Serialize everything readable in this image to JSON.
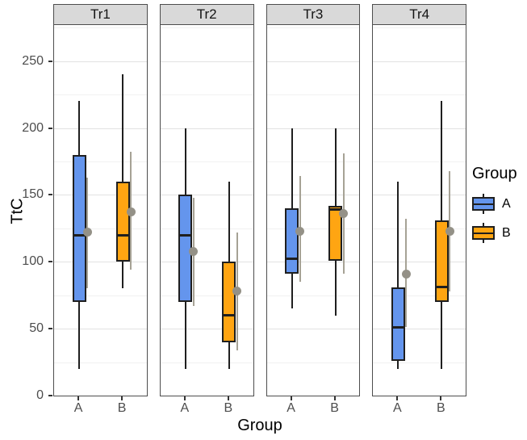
{
  "figure": {
    "y_axis_title": "TtC",
    "x_axis_title": "Group",
    "y_tick_labels": [
      "0",
      "50",
      "100",
      "150",
      "200",
      "250"
    ],
    "x_tick_labels": [
      "A",
      "B"
    ],
    "facet_labels": [
      "Tr1",
      "Tr2",
      "Tr3",
      "Tr4"
    ]
  },
  "legend": {
    "title": "Group",
    "entries": [
      {
        "label": "A",
        "color": "#6495ED"
      },
      {
        "label": "B",
        "color": "#FFA512"
      }
    ]
  },
  "style": {
    "box_outline": "#1F1F1F",
    "mean_point_color": "#949187",
    "mean_bar_color": "#A6A295",
    "strip_fill": "#D9D9D9",
    "panel_border": "#4D4D4D",
    "major_grid": "#E2E2E2",
    "minor_grid": "#F1F1F1",
    "tick_text": "#4D4D4D"
  },
  "chart_data": {
    "type": "boxplot",
    "title": "",
    "facets": [
      "Tr1",
      "Tr2",
      "Tr3",
      "Tr4"
    ],
    "x_categories": [
      "A",
      "B"
    ],
    "xlabel": "Group",
    "ylabel": "TtC",
    "ylim": [
      0,
      277
    ],
    "yticks": [
      0,
      50,
      100,
      150,
      200,
      250
    ],
    "minor_grid_values": [
      25,
      75,
      125,
      175,
      225,
      275
    ],
    "grid": true,
    "legend_position": "right",
    "group_colors": {
      "A": "#6495ED",
      "B": "#FFA512"
    },
    "boxes": [
      {
        "facet": "Tr1",
        "group": "A",
        "whisker_low": 20,
        "q1": 70,
        "median": 120,
        "q3": 180,
        "whisker_high": 220,
        "mean": 122,
        "mean_bar_low": 80,
        "mean_bar_high": 163
      },
      {
        "facet": "Tr1",
        "group": "B",
        "whisker_low": 80,
        "q1": 100,
        "median": 120,
        "q3": 160,
        "whisker_high": 240,
        "mean": 137,
        "mean_bar_low": 94,
        "mean_bar_high": 182
      },
      {
        "facet": "Tr2",
        "group": "A",
        "whisker_low": 20,
        "q1": 70,
        "median": 120,
        "q3": 150,
        "whisker_high": 200,
        "mean": 108,
        "mean_bar_low": 67,
        "mean_bar_high": 148
      },
      {
        "facet": "Tr2",
        "group": "B",
        "whisker_low": 20,
        "q1": 40,
        "median": 60,
        "q3": 100,
        "whisker_high": 160,
        "mean": 78,
        "mean_bar_low": 34,
        "mean_bar_high": 122
      },
      {
        "facet": "Tr3",
        "group": "A",
        "whisker_low": 65,
        "q1": 91,
        "median": 102,
        "q3": 140,
        "whisker_high": 200,
        "mean": 123,
        "mean_bar_low": 85,
        "mean_bar_high": 164
      },
      {
        "facet": "Tr3",
        "group": "B",
        "whisker_low": 60,
        "q1": 101,
        "median": 139,
        "q3": 142,
        "whisker_high": 200,
        "mean": 136,
        "mean_bar_low": 91,
        "mean_bar_high": 181
      },
      {
        "facet": "Tr4",
        "group": "A",
        "whisker_low": 20,
        "q1": 26,
        "median": 51,
        "q3": 81,
        "whisker_high": 160,
        "mean": 91,
        "mean_bar_low": 51,
        "mean_bar_high": 132
      },
      {
        "facet": "Tr4",
        "group": "B",
        "whisker_low": 20,
        "q1": 70,
        "median": 81,
        "q3": 131,
        "whisker_high": 220,
        "mean": 123,
        "mean_bar_low": 78,
        "mean_bar_high": 168
      }
    ]
  }
}
